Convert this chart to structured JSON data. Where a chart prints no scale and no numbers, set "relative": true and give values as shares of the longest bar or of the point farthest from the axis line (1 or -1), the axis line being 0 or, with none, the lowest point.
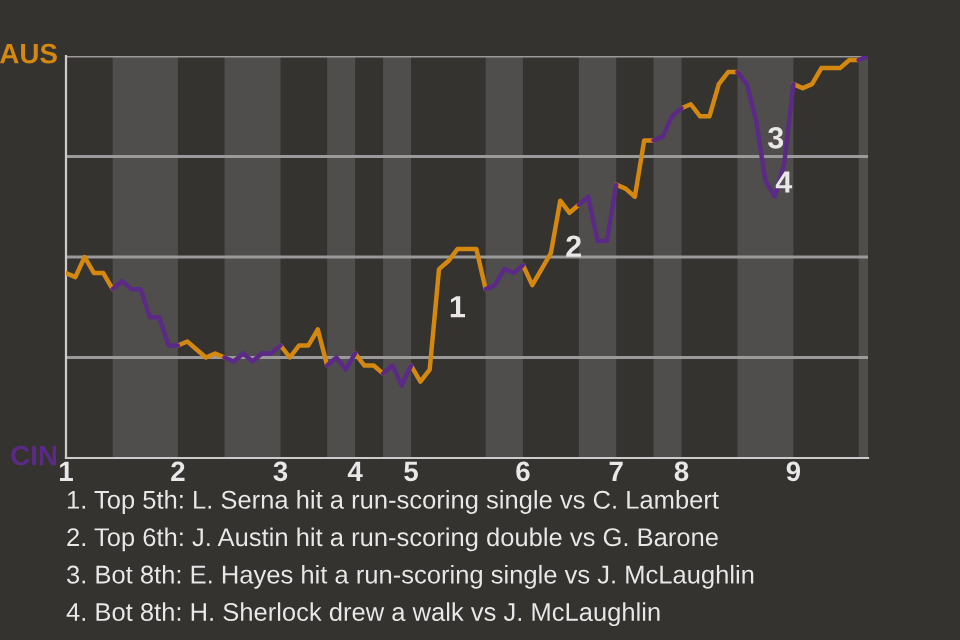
{
  "chart_data": {
    "type": "line",
    "relative": true,
    "categories": [
      "1",
      null,
      null,
      null,
      null,
      null,
      null,
      null,
      null,
      null,
      null,
      null,
      "2",
      null,
      null,
      null,
      null,
      null,
      null,
      null,
      null,
      null,
      null,
      "3",
      null,
      null,
      null,
      null,
      null,
      null,
      null,
      "4",
      null,
      null,
      null,
      null,
      null,
      "5",
      null,
      null,
      null,
      null,
      null,
      null,
      null,
      null,
      null,
      null,
      null,
      "6",
      null,
      null,
      null,
      null,
      null,
      null,
      null,
      null,
      null,
      "7",
      null,
      null,
      null,
      null,
      null,
      null,
      "8",
      null,
      null,
      null,
      null,
      null,
      null,
      null,
      null,
      null,
      null,
      null,
      "9",
      null,
      null,
      null,
      null,
      null,
      null,
      null,
      null
    ],
    "grid": "y",
    "marker": "none",
    "line_style": "solid",
    "series": [
      {
        "name": "AUS",
        "color": "#d4880f",
        "values": [
          0.46,
          0.45,
          0.5,
          0.46,
          0.46,
          0.42,
          null,
          null,
          null,
          null,
          null,
          null,
          0.28,
          0.29,
          0.27,
          0.25,
          0.26,
          0.25,
          null,
          null,
          null,
          null,
          null,
          0.28,
          0.25,
          0.28,
          0.28,
          0.32,
          0.23,
          null,
          null,
          0.26,
          0.23,
          0.23,
          0.21,
          null,
          null,
          0.23,
          0.19,
          0.22,
          0.47,
          0.49,
          0.52,
          0.52,
          0.52,
          0.42,
          null,
          null,
          null,
          0.48,
          0.43,
          0.47,
          0.51,
          0.64,
          0.61,
          0.63,
          null,
          null,
          null,
          0.68,
          0.67,
          0.65,
          0.79,
          0.79,
          null,
          null,
          0.87,
          0.88,
          0.85,
          0.85,
          0.93,
          0.96,
          0.96,
          null,
          null,
          null,
          null,
          null,
          0.93,
          0.92,
          0.93,
          0.97,
          0.97,
          0.97,
          0.99,
          0.99,
          null
        ]
      },
      {
        "name": "CIN",
        "color": "#5b2a86",
        "values": [
          null,
          null,
          null,
          null,
          null,
          0.42,
          0.44,
          0.42,
          0.42,
          0.35,
          0.35,
          0.28,
          0.28,
          null,
          null,
          null,
          null,
          0.25,
          0.24,
          0.26,
          0.24,
          0.26,
          0.26,
          0.28,
          null,
          null,
          null,
          null,
          0.23,
          0.25,
          0.22,
          0.26,
          null,
          null,
          0.21,
          0.23,
          0.18,
          0.23,
          null,
          null,
          null,
          null,
          null,
          null,
          null,
          0.42,
          0.43,
          0.47,
          0.46,
          0.48,
          null,
          null,
          null,
          null,
          null,
          0.63,
          0.65,
          0.54,
          0.54,
          0.68,
          null,
          null,
          null,
          0.79,
          0.8,
          0.85,
          0.87,
          null,
          null,
          null,
          null,
          null,
          0.96,
          0.93,
          0.84,
          0.69,
          0.65,
          0.73,
          0.93,
          null,
          null,
          null,
          null,
          null,
          null,
          0.99,
          1
        ]
      }
    ],
    "annotations": [
      "1",
      "2",
      "3",
      "4",
      "1. Top 5th: L. Serna hit a run-scoring single vs C. Lambert",
      "2. Top 6th: J. Austin hit a run-scoring double vs G. Barone",
      "3. Bot 8th: E. Hayes hit a run-scoring single vs J. McLaughlin",
      "4. Bot 8th: H. Sherlock drew a walk vs J. McLaughlin"
    ]
  }
}
